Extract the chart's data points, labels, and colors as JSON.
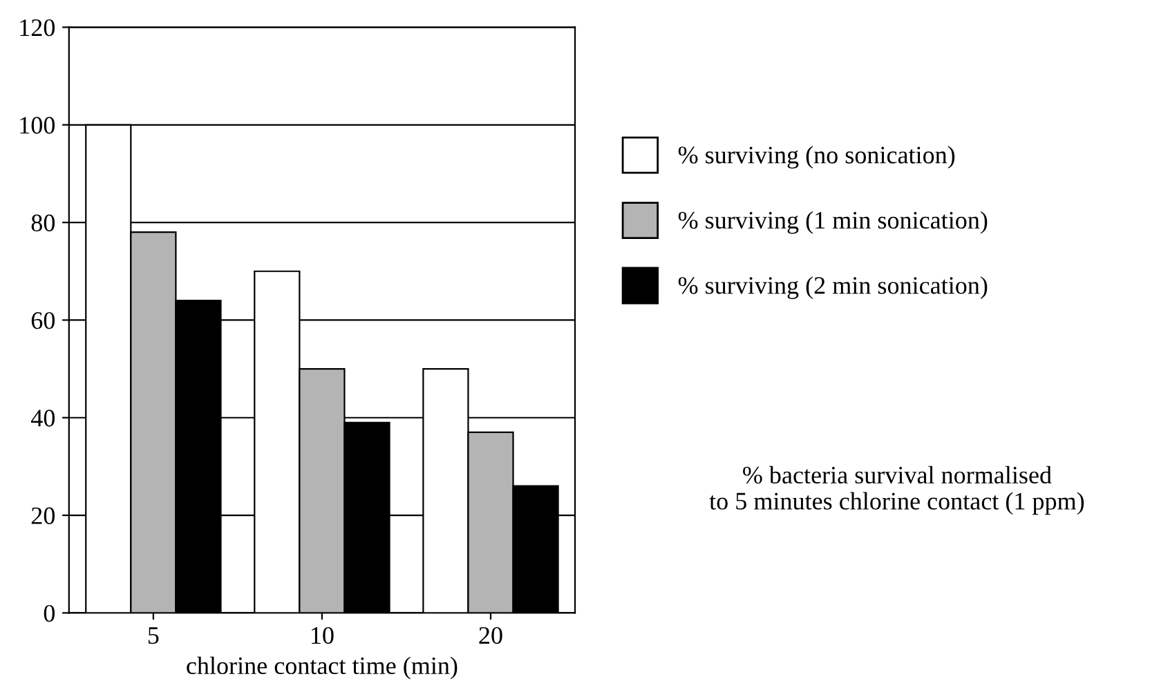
{
  "chart_data": {
    "type": "bar",
    "xlabel": "chlorine contact time (min)",
    "categories": [
      "5",
      "10",
      "20"
    ],
    "series": [
      {
        "name": "% surviving (no sonication)",
        "color": "#ffffff",
        "values": [
          100,
          70,
          50
        ]
      },
      {
        "name": "% surviving (1 min sonication)",
        "color": "#b4b4b4",
        "values": [
          78,
          50,
          37
        ]
      },
      {
        "name": "% surviving (2 min sonication)",
        "color": "#000000",
        "values": [
          64,
          39,
          26
        ]
      }
    ],
    "ylim": [
      0,
      120
    ],
    "yticks": [
      0,
      20,
      40,
      60,
      80,
      100,
      120
    ],
    "grid": "y",
    "legend": "right",
    "annotations": [
      "% bacteria survival normalised\nto 5 minutes chlorine contact (1 ppm)"
    ]
  }
}
